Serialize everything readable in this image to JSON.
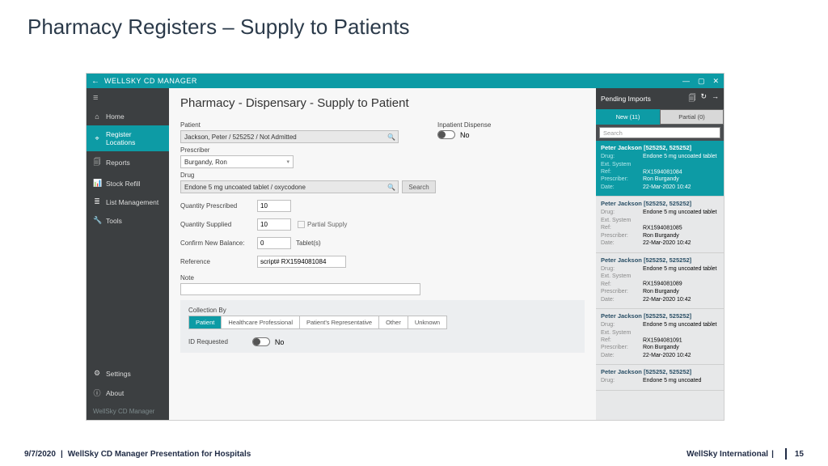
{
  "slide": {
    "title": "Pharmacy Registers – Supply to Patients"
  },
  "window": {
    "title": "WELLSKY CD MANAGER",
    "win_min": "—",
    "win_max": "▢",
    "win_close": "✕",
    "brand": "WellSky  CD Manager"
  },
  "sidebar": {
    "items": [
      {
        "icon": "⌂",
        "label": "Home"
      },
      {
        "icon": "⌖",
        "label": "Register Locations"
      },
      {
        "icon": "🗐",
        "label": "Reports"
      },
      {
        "icon": "📊",
        "label": "Stock Refill"
      },
      {
        "icon": "≣",
        "label": "List Management"
      },
      {
        "icon": "🔧",
        "label": "Tools"
      }
    ],
    "bottom": [
      {
        "icon": "⚙",
        "label": "Settings"
      },
      {
        "icon": "ⓘ",
        "label": "About"
      }
    ]
  },
  "page": {
    "title": "Pharmacy - Dispensary - Supply to Patient",
    "patient_label": "Patient",
    "patient_value": "Jackson, Peter / 525252 / Not Admitted",
    "inpatient_label": "Inpatient Dispense",
    "inpatient_value": "No",
    "prescriber_label": "Prescriber",
    "prescriber_value": "Burgandy, Ron",
    "drug_label": "Drug",
    "drug_value": "Endone 5 mg uncoated tablet / oxycodone",
    "search_btn": "Search",
    "qty_prescribed_label": "Quantity Prescribed",
    "qty_prescribed": "10",
    "qty_supplied_label": "Quantity Supplied",
    "qty_supplied": "10",
    "partial_supply": "Partial Supply",
    "confirm_balance_label": "Confirm New Balance:",
    "confirm_balance": "0",
    "tablets": "Tablet(s)",
    "reference_label": "Reference",
    "reference": "script# RX1594081084",
    "note_label": "Note",
    "collection_label": "Collection By",
    "seg": [
      "Patient",
      "Healthcare Professional",
      "Patient's Representative",
      "Other",
      "Unknown"
    ],
    "id_requested_label": "ID Requested",
    "id_requested_value": "No"
  },
  "rightpanel": {
    "header": "Pending Imports",
    "icon_copy": "🗐",
    "icon_refresh": "↻",
    "icon_next": "→",
    "tab_new": "New (11)",
    "tab_partial": "Partial (0)",
    "search_placeholder": "Search",
    "cards": [
      {
        "name": "Peter Jackson [525252, 525252]",
        "drug": "Endone 5 mg uncoated tablet",
        "ref": "RX1594081084",
        "prescriber": "Ron Burgandy",
        "date": "22-Mar-2020 10:42",
        "hl": true
      },
      {
        "name": "Peter Jackson [525252, 525252]",
        "drug": "Endone 5 mg uncoated tablet",
        "ref": "RX1594081085",
        "prescriber": "Ron Burgandy",
        "date": "22-Mar-2020 10:42",
        "hl": false
      },
      {
        "name": "Peter Jackson [525252, 525252]",
        "drug": "Endone 5 mg uncoated tablet",
        "ref": "RX1594081089",
        "prescriber": "Ron Burgandy",
        "date": "22-Mar-2020 10:42",
        "hl": false
      },
      {
        "name": "Peter Jackson [525252, 525252]",
        "drug": "Endone 5 mg uncoated tablet",
        "ref": "RX1594081091",
        "prescriber": "Ron Burgandy",
        "date": "22-Mar-2020 10:42",
        "hl": false
      },
      {
        "name": "Peter Jackson [525252, 525252]",
        "drug": "Endone 5 mg uncoated",
        "ref": "",
        "prescriber": "",
        "date": "",
        "hl": false
      }
    ],
    "k_drug": "Drug:",
    "k_ref": "Ext. System Ref:",
    "k_presc": "Prescriber:",
    "k_date": "Date:"
  },
  "footer": {
    "date": "9/7/2020",
    "desc": "WellSky CD Manager Presentation for Hospitals",
    "company": "WellSky International",
    "page": "15"
  }
}
